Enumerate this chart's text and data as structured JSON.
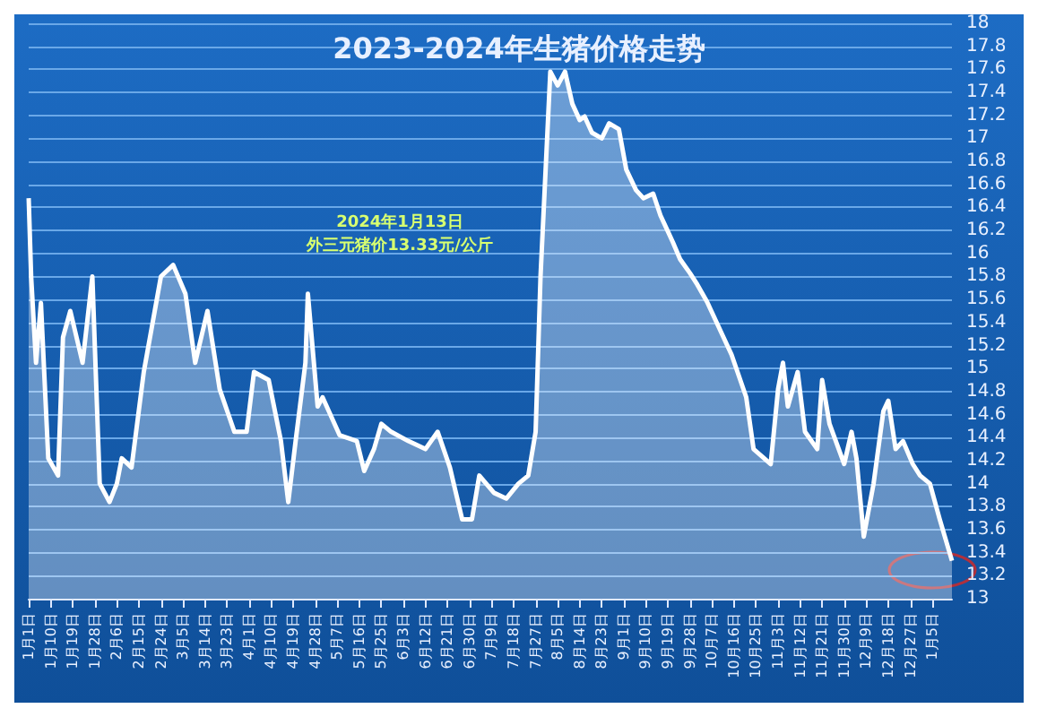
{
  "chart_data": {
    "type": "area",
    "title": "2023-2024年生猪价格走势",
    "annotations": [
      "2024年1月13日",
      "外三元猪价13.33元/公斤"
    ],
    "x": [
      "2023-01-01",
      "2023-01-02",
      "2023-01-04",
      "2023-01-06",
      "2023-01-09",
      "2023-01-13",
      "2023-01-15",
      "2023-01-18",
      "2023-01-23",
      "2023-01-27",
      "2023-01-30",
      "2023-02-03",
      "2023-02-06",
      "2023-02-08",
      "2023-02-12",
      "2023-02-17",
      "2023-02-24",
      "2023-03-01",
      "2023-03-06",
      "2023-03-10",
      "2023-03-15",
      "2023-03-20",
      "2023-03-26",
      "2023-03-31",
      "2023-04-03",
      "2023-04-09",
      "2023-04-14",
      "2023-04-17",
      "2023-04-20",
      "2023-04-24",
      "2023-04-25",
      "2023-04-29",
      "2023-05-01",
      "2023-05-08",
      "2023-05-15",
      "2023-05-18",
      "2023-05-22",
      "2023-05-25",
      "2023-05-29",
      "2023-06-05",
      "2023-06-12",
      "2023-06-17",
      "2023-06-22",
      "2023-06-27",
      "2023-07-01",
      "2023-07-04",
      "2023-07-10",
      "2023-07-15",
      "2023-07-20",
      "2023-07-24",
      "2023-07-27",
      "2023-07-29",
      "2023-08-02",
      "2023-08-05",
      "2023-08-08",
      "2023-08-11",
      "2023-08-14",
      "2023-08-16",
      "2023-08-19",
      "2023-08-23",
      "2023-08-26",
      "2023-08-30",
      "2023-09-02",
      "2023-09-06",
      "2023-09-09",
      "2023-09-13",
      "2023-09-16",
      "2023-09-21",
      "2023-09-24",
      "2023-09-28",
      "2023-10-01",
      "2023-10-05",
      "2023-10-10",
      "2023-10-15",
      "2023-10-21",
      "2023-10-24",
      "2023-10-31",
      "2023-11-03",
      "2023-11-05",
      "2023-11-07",
      "2023-11-11",
      "2023-11-14",
      "2023-11-19",
      "2023-11-21",
      "2023-11-24",
      "2023-11-30",
      "2023-12-03",
      "2023-12-05",
      "2023-12-08",
      "2023-12-12",
      "2023-12-16",
      "2023-12-18",
      "2023-12-21",
      "2023-12-24",
      "2023-12-28",
      "2023-12-31",
      "2024-01-04",
      "2024-01-08",
      "2024-01-13"
    ],
    "series": [
      {
        "color": "#ffffff",
        "values": [
          16.48,
          15.8,
          15.05,
          15.57,
          14.22,
          14.07,
          15.27,
          15.5,
          15.05,
          15.8,
          14.0,
          13.84,
          14.0,
          14.22,
          14.14,
          14.97,
          15.8,
          15.9,
          15.65,
          15.05,
          15.5,
          14.82,
          14.45,
          14.45,
          14.97,
          14.9,
          14.37,
          13.84,
          14.37,
          15.05,
          15.65,
          14.67,
          14.75,
          14.42,
          14.37,
          14.11,
          14.3,
          14.52,
          14.45,
          14.37,
          14.3,
          14.45,
          14.14,
          13.69,
          13.69,
          14.07,
          13.92,
          13.87,
          14.0,
          14.07,
          14.45,
          15.8,
          17.58,
          17.46,
          17.58,
          17.3,
          17.16,
          17.19,
          17.05,
          17.0,
          17.13,
          17.08,
          16.73,
          16.55,
          16.48,
          16.52,
          16.33,
          16.1,
          15.95,
          15.83,
          15.73,
          15.58,
          15.35,
          15.12,
          14.75,
          14.3,
          14.17,
          14.82,
          15.05,
          14.67,
          14.97,
          14.45,
          14.3,
          14.9,
          14.52,
          14.17,
          14.45,
          14.22,
          13.54,
          14.0,
          14.63,
          14.72,
          14.3,
          14.37,
          14.17,
          14.07,
          14.0,
          13.69,
          13.33
        ]
      }
    ],
    "xlim": [
      "2023-01-01",
      "2024-01-13"
    ],
    "xticks": [
      {
        "value": "2023-01-01",
        "label": "1月1日"
      },
      {
        "value": "2023-01-10",
        "label": "1月10日"
      },
      {
        "value": "2023-01-19",
        "label": "1月19日"
      },
      {
        "value": "2023-01-28",
        "label": "1月28日"
      },
      {
        "value": "2023-02-06",
        "label": "2月6日"
      },
      {
        "value": "2023-02-15",
        "label": "2月15日"
      },
      {
        "value": "2023-02-24",
        "label": "2月24日"
      },
      {
        "value": "2023-03-05",
        "label": "3月5日"
      },
      {
        "value": "2023-03-14",
        "label": "3月14日"
      },
      {
        "value": "2023-03-23",
        "label": "3月23日"
      },
      {
        "value": "2023-04-01",
        "label": "4月1日"
      },
      {
        "value": "2023-04-10",
        "label": "4月10日"
      },
      {
        "value": "2023-04-19",
        "label": "4月19日"
      },
      {
        "value": "2023-04-28",
        "label": "4月28日"
      },
      {
        "value": "2023-05-07",
        "label": "5月7日"
      },
      {
        "value": "2023-05-16",
        "label": "5月16日"
      },
      {
        "value": "2023-05-25",
        "label": "5月25日"
      },
      {
        "value": "2023-06-03",
        "label": "6月3日"
      },
      {
        "value": "2023-06-12",
        "label": "6月12日"
      },
      {
        "value": "2023-06-21",
        "label": "6月21日"
      },
      {
        "value": "2023-06-30",
        "label": "6月30日"
      },
      {
        "value": "2023-07-09",
        "label": "7月9日"
      },
      {
        "value": "2023-07-18",
        "label": "7月18日"
      },
      {
        "value": "2023-07-27",
        "label": "7月27日"
      },
      {
        "value": "2023-08-05",
        "label": "8月5日"
      },
      {
        "value": "2023-08-14",
        "label": "8月14日"
      },
      {
        "value": "2023-08-23",
        "label": "8月23日"
      },
      {
        "value": "2023-09-01",
        "label": "9月1日"
      },
      {
        "value": "2023-09-10",
        "label": "9月10日"
      },
      {
        "value": "2023-09-19",
        "label": "9月19日"
      },
      {
        "value": "2023-09-28",
        "label": "9月28日"
      },
      {
        "value": "2023-10-07",
        "label": "10月7日"
      },
      {
        "value": "2023-10-16",
        "label": "10月16日"
      },
      {
        "value": "2023-10-25",
        "label": "10月25日"
      },
      {
        "value": "2023-11-03",
        "label": "11月3日"
      },
      {
        "value": "2023-11-12",
        "label": "11月12日"
      },
      {
        "value": "2023-11-21",
        "label": "11月21日"
      },
      {
        "value": "2023-11-30",
        "label": "11月30日"
      },
      {
        "value": "2023-12-09",
        "label": "12月9日"
      },
      {
        "value": "2023-12-18",
        "label": "12月18日"
      },
      {
        "value": "2023-12-27",
        "label": "12月27日"
      },
      {
        "value": "2024-01-05",
        "label": "1月5日"
      }
    ],
    "ylim": [
      13,
      18
    ],
    "yticks": [
      13,
      13.2,
      13.4,
      13.6,
      13.8,
      14,
      14.2,
      14.4,
      14.6,
      14.8,
      15,
      15.2,
      15.4,
      15.6,
      15.8,
      16,
      16.2,
      16.4,
      16.6,
      16.8,
      17,
      17.2,
      17.4,
      17.6,
      17.8,
      18
    ],
    "grid": "y"
  }
}
